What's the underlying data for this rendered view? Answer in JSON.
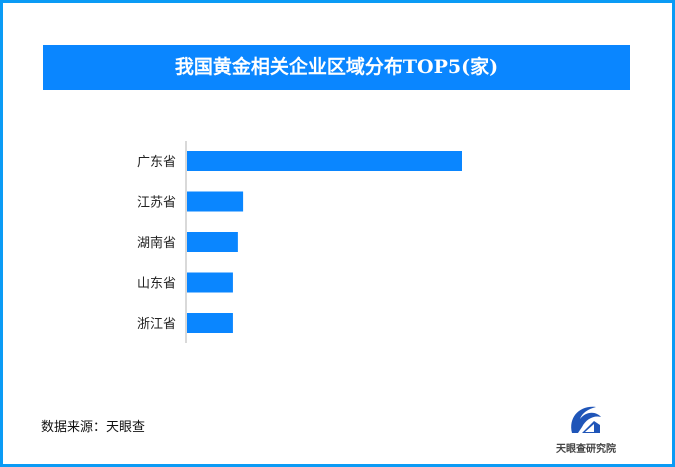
{
  "chart_data": {
    "type": "bar",
    "orientation": "horizontal",
    "title": "我国黄金相关企业区域分布TOP5(家)",
    "categories": [
      "广东省",
      "江苏省",
      "湖南省",
      "山东省",
      "浙江省"
    ],
    "values": [
      100,
      20.4,
      18.5,
      16.7,
      16.7
    ],
    "xlim": [
      0,
      100
    ],
    "grid": false,
    "legend": "none",
    "bar_color": "#0a86ff",
    "axis_color": "#d9d9d9"
  },
  "source": "数据来源：天眼查",
  "logo": {
    "text": "天眼查研究院",
    "icon": "tianyancha-logo-icon"
  },
  "colors": {
    "border": "#0a9bf5",
    "title_bg": "#0a86ff"
  }
}
